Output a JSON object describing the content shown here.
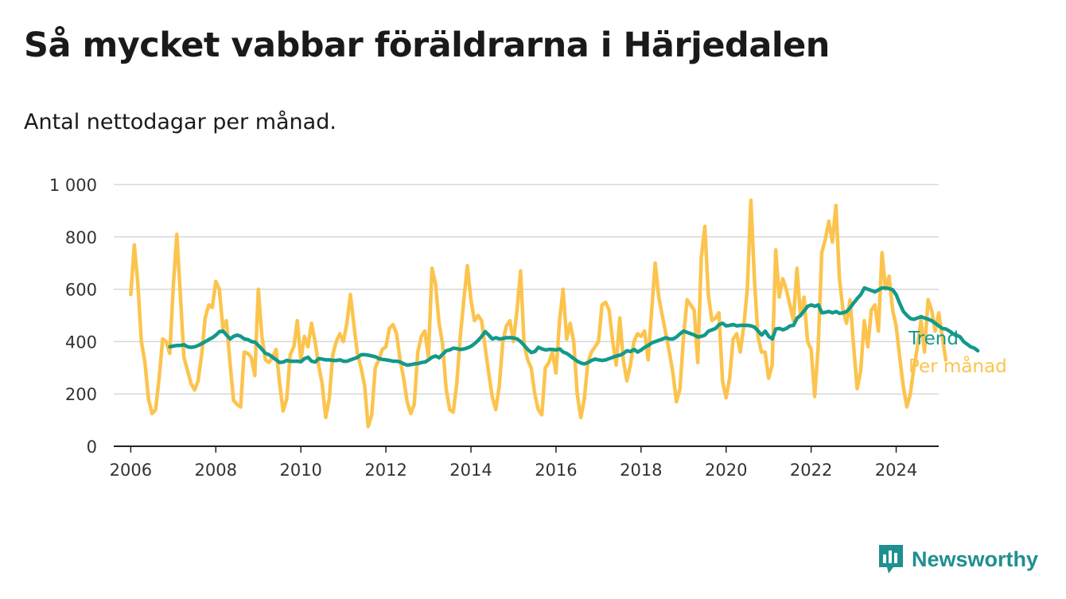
{
  "header": {
    "title": "Så mycket vabbar föräldrarna i Härjedalen",
    "subtitle": "Antal nettodagar per månad."
  },
  "brand": {
    "name": "Newsworthy",
    "color": "#1f8f8f",
    "icon": "newsworthy-logo-icon"
  },
  "chart_data": {
    "type": "line",
    "title": "Så mycket vabbar föräldrarna i Härjedalen",
    "subtitle": "Antal nettodagar per månad.",
    "xlabel": "",
    "ylabel": "",
    "xlim": [
      2005.6,
      2025.0
    ],
    "ylim": [
      0,
      1000
    ],
    "y_ticks": [
      0,
      200,
      400,
      600,
      800,
      1000
    ],
    "y_tick_labels": [
      "0",
      "200",
      "400",
      "600",
      "800",
      "1 000"
    ],
    "x_ticks": [
      2006,
      2008,
      2010,
      2012,
      2014,
      2016,
      2018,
      2020,
      2022,
      2024
    ],
    "x_tick_labels": [
      "2006",
      "2008",
      "2010",
      "2012",
      "2014",
      "2016",
      "2018",
      "2020",
      "2022",
      "2024"
    ],
    "grid": true,
    "legend": "right, at line ends",
    "series": [
      {
        "name": "Per månad",
        "color": "#fcc44e",
        "x_start": 2006.0,
        "x_step": 0.08333,
        "values": [
          580,
          770,
          620,
          400,
          320,
          180,
          125,
          140,
          260,
          410,
          400,
          355,
          610,
          810,
          580,
          340,
          290,
          240,
          215,
          250,
          350,
          490,
          540,
          530,
          630,
          600,
          450,
          480,
          320,
          175,
          160,
          150,
          360,
          355,
          340,
          270,
          600,
          420,
          330,
          320,
          340,
          370,
          240,
          135,
          180,
          350,
          380,
          480,
          330,
          420,
          380,
          470,
          400,
          310,
          240,
          110,
          180,
          350,
          400,
          430,
          400,
          470,
          580,
          460,
          350,
          300,
          230,
          75,
          120,
          300,
          330,
          370,
          380,
          450,
          465,
          430,
          330,
          260,
          170,
          125,
          160,
          360,
          420,
          440,
          340,
          680,
          620,
          470,
          390,
          220,
          140,
          130,
          240,
          420,
          560,
          690,
          560,
          480,
          500,
          480,
          380,
          280,
          190,
          140,
          230,
          400,
          460,
          480,
          400,
          520,
          670,
          390,
          330,
          300,
          200,
          140,
          120,
          300,
          320,
          360,
          280,
          480,
          600,
          410,
          470,
          400,
          200,
          110,
          180,
          320,
          360,
          380,
          400,
          540,
          550,
          520,
          400,
          310,
          490,
          330,
          250,
          310,
          400,
          430,
          420,
          440,
          330,
          520,
          700,
          570,
          500,
          430,
          360,
          280,
          170,
          220,
          420,
          560,
          540,
          520,
          320,
          720,
          840,
          580,
          480,
          490,
          510,
          250,
          185,
          260,
          410,
          430,
          360,
          460,
          600,
          940,
          640,
          420,
          360,
          360,
          260,
          310,
          750,
          570,
          640,
          600,
          540,
          480,
          680,
          500,
          570,
          400,
          370,
          190,
          380,
          740,
          790,
          860,
          780,
          920,
          640,
          520,
          470,
          560,
          380,
          220,
          290,
          480,
          380,
          520,
          540,
          440,
          740,
          600,
          650,
          520,
          460,
          340,
          230,
          150,
          200,
          300,
          380,
          480,
          360,
          560,
          520,
          440,
          510,
          420,
          330
        ]
      },
      {
        "name": "Trend",
        "color": "#13998a",
        "x_start": 2006.92,
        "x_step": 0.08333,
        "values": [
          380,
          383,
          385,
          385,
          388,
          380,
          378,
          380,
          385,
          392,
          400,
          408,
          415,
          425,
          438,
          440,
          425,
          410,
          420,
          425,
          420,
          410,
          408,
          400,
          398,
          385,
          370,
          355,
          350,
          340,
          330,
          320,
          322,
          328,
          325,
          325,
          325,
          323,
          335,
          340,
          325,
          322,
          335,
          333,
          330,
          330,
          328,
          328,
          330,
          325,
          325,
          330,
          335,
          340,
          350,
          350,
          348,
          345,
          342,
          335,
          332,
          330,
          328,
          325,
          325,
          322,
          315,
          310,
          312,
          315,
          316,
          320,
          322,
          330,
          340,
          345,
          338,
          352,
          365,
          368,
          375,
          373,
          370,
          372,
          376,
          382,
          392,
          405,
          420,
          438,
          425,
          410,
          415,
          410,
          412,
          415,
          415,
          414,
          410,
          400,
          385,
          370,
          358,
          362,
          378,
          372,
          368,
          370,
          370,
          368,
          372,
          360,
          355,
          345,
          335,
          325,
          318,
          315,
          320,
          328,
          333,
          330,
          328,
          330,
          335,
          340,
          345,
          348,
          355,
          365,
          362,
          370,
          360,
          368,
          378,
          385,
          395,
          400,
          405,
          410,
          415,
          410,
          410,
          418,
          430,
          440,
          435,
          430,
          425,
          418,
          420,
          425,
          440,
          445,
          450,
          465,
          470,
          460,
          462,
          465,
          460,
          462,
          462,
          462,
          460,
          455,
          440,
          425,
          440,
          420,
          410,
          448,
          450,
          445,
          450,
          460,
          462,
          490,
          500,
          518,
          535,
          540,
          535,
          540,
          510,
          512,
          515,
          510,
          515,
          508,
          510,
          515,
          530,
          548,
          565,
          580,
          605,
          600,
          595,
          590,
          598,
          605,
          605,
          602,
          598,
          578,
          545,
          515,
          500,
          488,
          485,
          490,
          495,
          490,
          485,
          480,
          470,
          460,
          450,
          448,
          440,
          430,
          425,
          418,
          400,
          390,
          380,
          375,
          365
        ]
      }
    ]
  }
}
